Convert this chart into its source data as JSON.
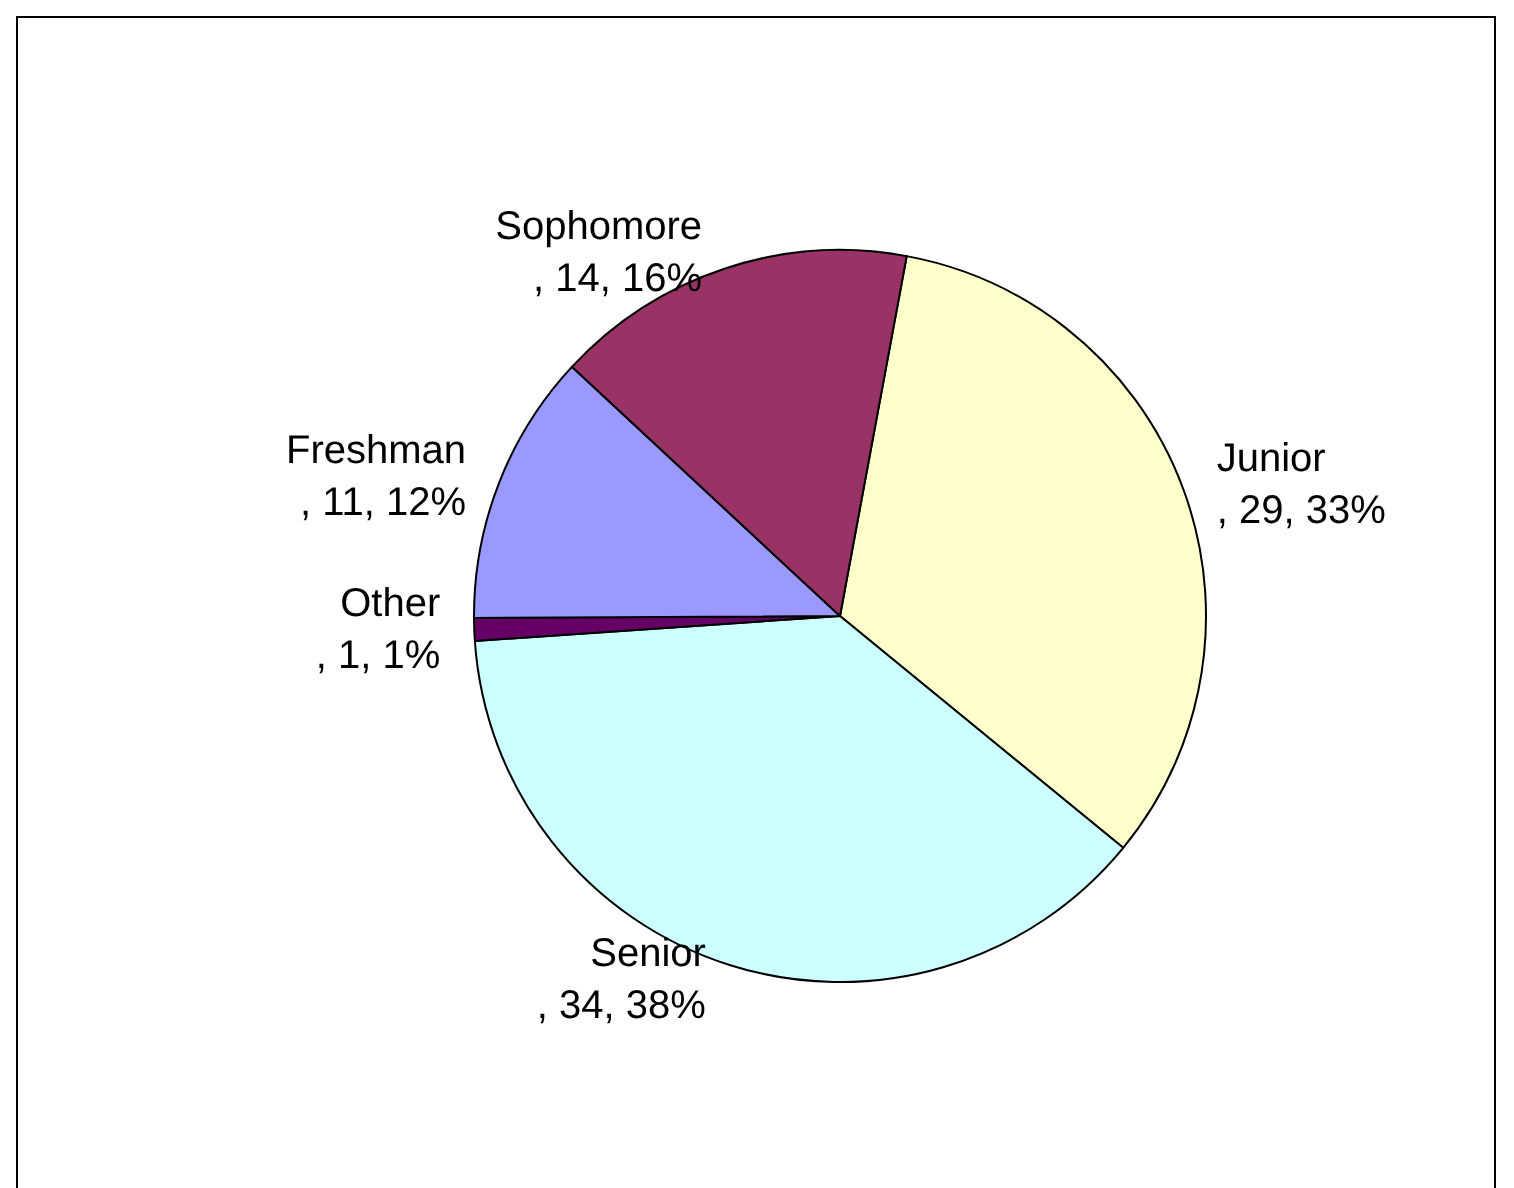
{
  "chart_data": {
    "type": "pie",
    "categories": [
      "Junior",
      "Senior",
      "Other",
      "Freshman",
      "Sophomore"
    ],
    "values": [
      33,
      38,
      1,
      12,
      16
    ],
    "colors": [
      "#ffffcc",
      "#ccffff",
      "#660066",
      "#9999ff",
      "#993366"
    ],
    "value_labels": [
      ", 29, 33%",
      ", 34, 38%",
      ", 1, 1%",
      ", 11, 12%",
      ", 14, 16%"
    ],
    "legend": false
  }
}
